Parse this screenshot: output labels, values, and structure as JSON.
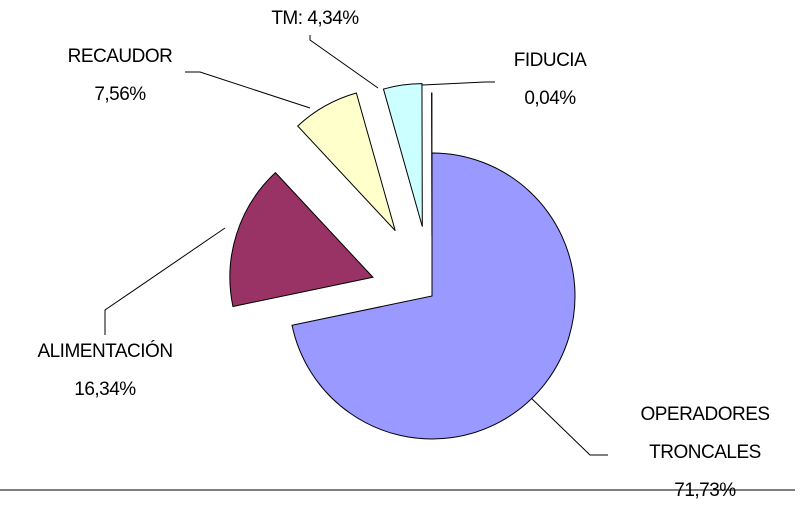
{
  "chart_data": {
    "type": "pie",
    "categories": [
      "OPERADORES TRONCALES",
      "ALIMENTACIÓN",
      "RECAUDOR",
      "TM",
      "FIDUCIA"
    ],
    "values": [
      71.73,
      16.34,
      7.56,
      4.34,
      0.04
    ],
    "value_labels": [
      "71,73%",
      "16,34%",
      "7,56%",
      "4,34%",
      "0,04%"
    ],
    "colors": [
      "#9999ff",
      "#993366",
      "#ffffcc",
      "#ccffff",
      "#660066"
    ]
  }
}
